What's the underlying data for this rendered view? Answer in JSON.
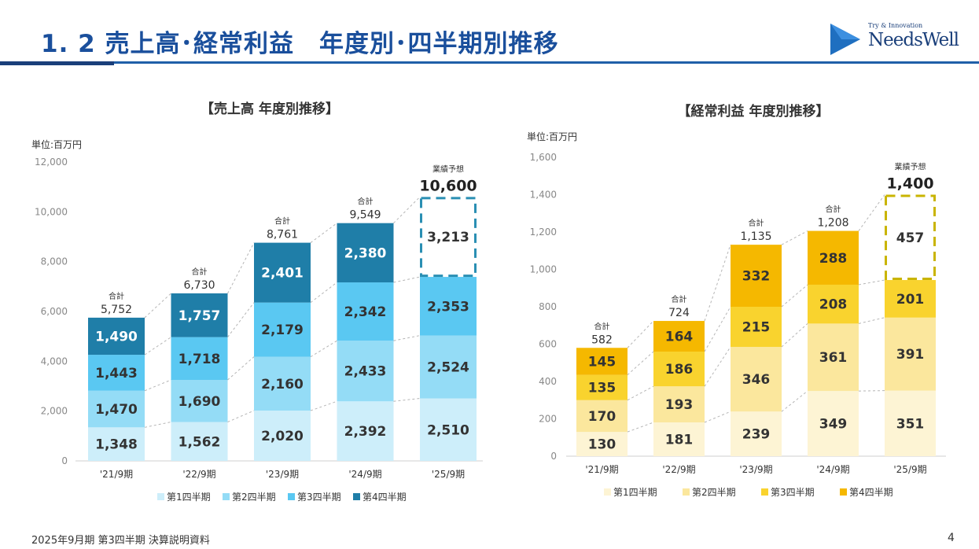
{
  "header": {
    "title": "1. 2  売上高･経常利益　年度別･四半期別推移",
    "logo_tagline": "Try & Innovation",
    "logo_name": "NeedsWell"
  },
  "footer": {
    "text": "2025年9月期 第3四半期 決算説明資料",
    "page_number": "4"
  },
  "chart_data": [
    {
      "type": "bar",
      "stacked": true,
      "title": "【売上高 年度別推移】",
      "unit_label": "単位:百万円",
      "categories": [
        "'21/9期",
        "'22/9期",
        "'23/9期",
        "'24/9期",
        "'25/9期"
      ],
      "series": [
        {
          "name": "第1四半期",
          "color": "#cdeefa",
          "values": [
            1348,
            1562,
            2020,
            2392,
            2510
          ],
          "labels": [
            "1,348",
            "1,562",
            "2,020",
            "2,392",
            "2,510"
          ]
        },
        {
          "name": "第2四半期",
          "color": "#94dcf6",
          "values": [
            1470,
            1690,
            2160,
            2433,
            2524
          ],
          "labels": [
            "1,470",
            "1,690",
            "2,160",
            "2,433",
            "2,524"
          ]
        },
        {
          "name": "第3四半期",
          "color": "#5ac8f2",
          "values": [
            1443,
            1718,
            2179,
            2342,
            2353
          ],
          "labels": [
            "1,443",
            "1,718",
            "2,179",
            "2,342",
            "2,353"
          ]
        },
        {
          "name": "第4四半期",
          "color": "#1f7ea8",
          "values": [
            1490,
            1757,
            2401,
            2380,
            3213
          ],
          "labels": [
            "1,490",
            "1,757",
            "2,401",
            "2,380",
            "3,213"
          ]
        }
      ],
      "forecast_index": 4,
      "forecast_color": "#2a8fb3",
      "total_caption": "合計",
      "forecast_caption": "業績予想",
      "totals": [
        "5,752",
        "6,730",
        "8,761",
        "9,549",
        "10,600"
      ],
      "ylim": [
        0,
        12000
      ],
      "yticks": [
        0,
        2000,
        4000,
        6000,
        8000,
        10000,
        12000
      ],
      "ytick_labels": [
        "0",
        "2,000",
        "4,000",
        "6,000",
        "8,000",
        "10,000",
        "12,000"
      ],
      "grid": false,
      "legend_position": "bottom"
    },
    {
      "type": "bar",
      "stacked": true,
      "title": "【経常利益 年度別推移】",
      "unit_label": "単位:百万円",
      "categories": [
        "'21/9期",
        "'22/9期",
        "'23/9期",
        "'24/9期",
        "'25/9期"
      ],
      "series": [
        {
          "name": "第1四半期",
          "color": "#fdf4d4",
          "values": [
            130,
            181,
            239,
            349,
            351
          ],
          "labels": [
            "130",
            "181",
            "239",
            "349",
            "351"
          ]
        },
        {
          "name": "第2四半期",
          "color": "#fbe79d",
          "values": [
            170,
            193,
            346,
            361,
            391
          ],
          "labels": [
            "170",
            "193",
            "346",
            "361",
            "391"
          ]
        },
        {
          "name": "第3四半期",
          "color": "#f9d32e",
          "values": [
            135,
            186,
            215,
            208,
            201
          ],
          "labels": [
            "135",
            "186",
            "215",
            "208",
            "201"
          ]
        },
        {
          "name": "第4四半期",
          "color": "#f5b800",
          "values": [
            145,
            164,
            332,
            288,
            457
          ],
          "labels": [
            "145",
            "164",
            "332",
            "288",
            "457"
          ]
        }
      ],
      "forecast_index": 4,
      "forecast_color": "#c9b400",
      "total_caption": "合計",
      "forecast_caption": "業績予想",
      "totals": [
        "582",
        "724",
        "1,135",
        "1,208",
        "1,400"
      ],
      "ylim": [
        0,
        1600
      ],
      "yticks": [
        0,
        200,
        400,
        600,
        800,
        1000,
        1200,
        1400,
        1600
      ],
      "ytick_labels": [
        "0",
        "200",
        "400",
        "600",
        "800",
        "1,000",
        "1,200",
        "1,400",
        "1,600"
      ],
      "grid": false,
      "legend_position": "bottom"
    }
  ]
}
